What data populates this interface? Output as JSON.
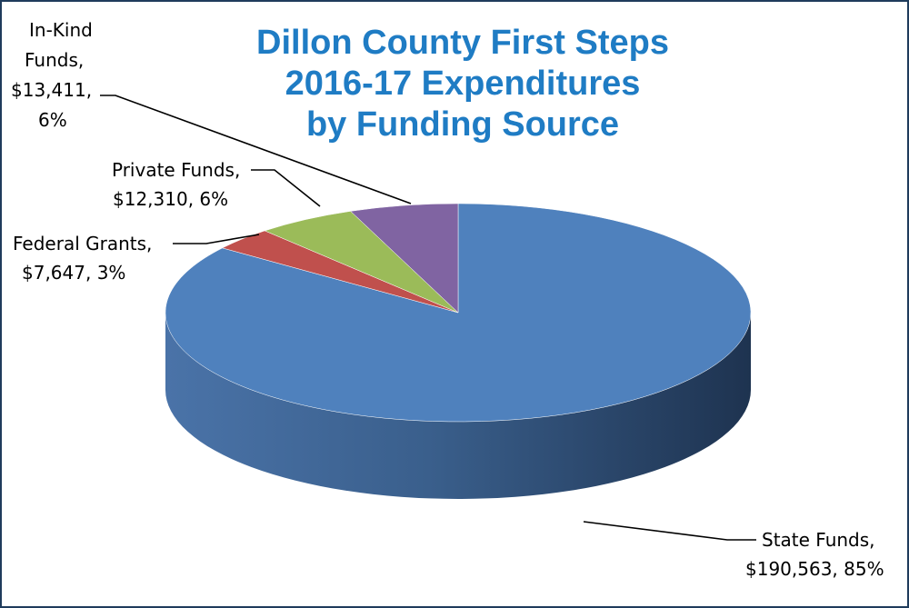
{
  "chart_data": {
    "type": "pie",
    "title": [
      "Dillon County First Steps",
      "2016-17 Expenditures",
      "by Funding Source"
    ],
    "slices": [
      {
        "label_lines": [
          "State Funds,",
          "$190,563, 85%"
        ],
        "name": "State Funds",
        "value": 190563,
        "percent": 85,
        "color": "#4f81bd",
        "side_color": "#3a5f8c"
      },
      {
        "label_lines": [
          "Federal Grants,",
          "$7,647, 3%"
        ],
        "name": "Federal Grants",
        "value": 7647,
        "percent": 3,
        "color": "#c0504d",
        "side_color": "#8e3b39"
      },
      {
        "label_lines": [
          "Private Funds,",
          "$12,310, 6%"
        ],
        "name": "Private Funds",
        "value": 12310,
        "percent": 6,
        "color": "#9bbb59",
        "side_color": "#728a41"
      },
      {
        "label_lines": [
          "In-Kind",
          "Funds,",
          "$13,411,",
          "6%"
        ],
        "name": "In-Kind Funds",
        "value": 13411,
        "percent": 6,
        "color": "#8064a2",
        "side_color": "#5e4a78"
      }
    ],
    "legend": "none",
    "border_color": "#1f3c5c",
    "title_color": "#1f7cc4"
  }
}
